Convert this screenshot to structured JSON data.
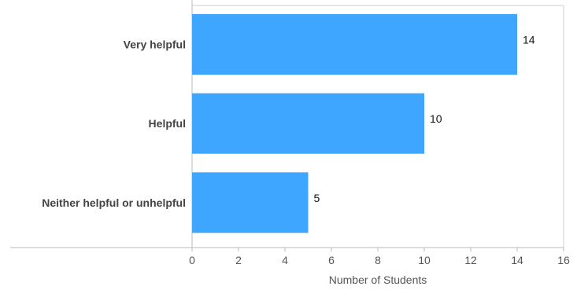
{
  "chart_data": {
    "type": "bar",
    "orientation": "horizontal",
    "categories": [
      "Very helpful",
      "Helpful",
      "Neither helpful or unhelpful"
    ],
    "values": [
      14,
      10,
      5
    ],
    "title": "",
    "xlabel": "Number of Students",
    "ylabel": "",
    "xlim": [
      0,
      16
    ],
    "x_ticks": [
      0,
      2,
      4,
      6,
      8,
      10,
      12,
      14,
      16
    ],
    "grid": false,
    "legend": "none",
    "bar_color": "#3ea6ff",
    "value_labels": true
  }
}
